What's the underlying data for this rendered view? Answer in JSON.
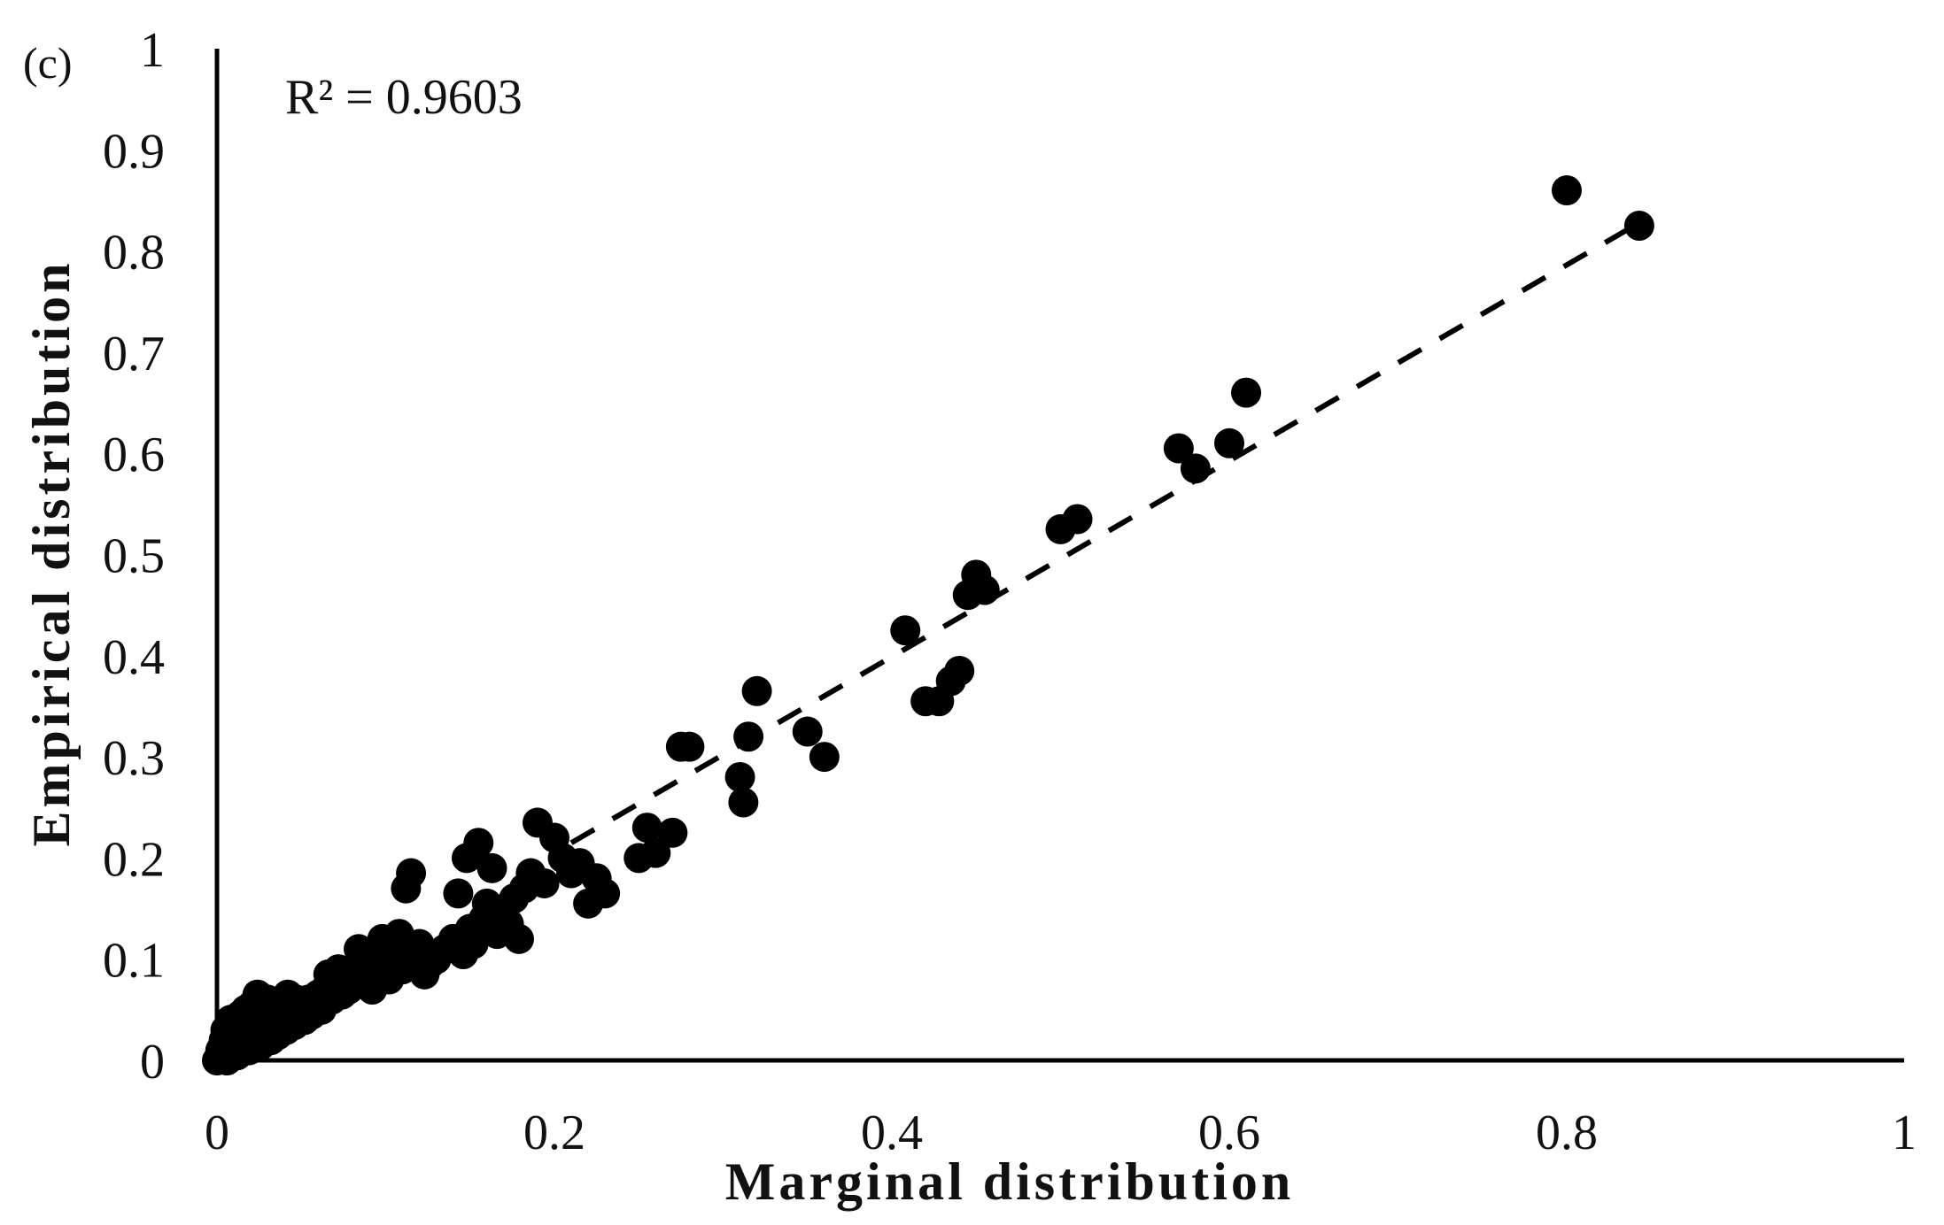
{
  "chart_data": {
    "type": "scatter",
    "panel_label": "(c)",
    "annotation": "R² = 0.9603",
    "xlabel": "Marginal distribution",
    "ylabel": "Empirical distribution",
    "xlim": [
      0,
      1
    ],
    "ylim": [
      0,
      1
    ],
    "xticks": [
      "0",
      "0.2",
      "0.4",
      "0.6",
      "0.8",
      "1"
    ],
    "yticks": [
      "0",
      "0.1",
      "0.2",
      "0.3",
      "0.4",
      "0.5",
      "0.6",
      "0.7",
      "0.8",
      "0.9",
      "1"
    ],
    "grid": false,
    "legend": "none",
    "marker_color": "#000000",
    "trendline": {
      "style": "dashed",
      "x": [
        0.21,
        0.84
      ],
      "y": [
        0.215,
        0.825
      ]
    },
    "points": [
      [
        0.0,
        0.0
      ],
      [
        0.002,
        0.01
      ],
      [
        0.003,
        0.005
      ],
      [
        0.004,
        0.02
      ],
      [
        0.005,
        0.03
      ],
      [
        0.006,
        0.0
      ],
      [
        0.007,
        0.015
      ],
      [
        0.008,
        0.04
      ],
      [
        0.009,
        0.025
      ],
      [
        0.01,
        0.01
      ],
      [
        0.011,
        0.035
      ],
      [
        0.012,
        0.005
      ],
      [
        0.013,
        0.02
      ],
      [
        0.014,
        0.045
      ],
      [
        0.015,
        0.03
      ],
      [
        0.016,
        0.015
      ],
      [
        0.017,
        0.05
      ],
      [
        0.018,
        0.025
      ],
      [
        0.019,
        0.01
      ],
      [
        0.02,
        0.04
      ],
      [
        0.021,
        0.055
      ],
      [
        0.022,
        0.03
      ],
      [
        0.023,
        0.02
      ],
      [
        0.024,
        0.065
      ],
      [
        0.025,
        0.04
      ],
      [
        0.026,
        0.015
      ],
      [
        0.027,
        0.05
      ],
      [
        0.028,
        0.035
      ],
      [
        0.029,
        0.025
      ],
      [
        0.03,
        0.06
      ],
      [
        0.031,
        0.045
      ],
      [
        0.032,
        0.02
      ],
      [
        0.033,
        0.03
      ],
      [
        0.034,
        0.055
      ],
      [
        0.035,
        0.04
      ],
      [
        0.036,
        0.025
      ],
      [
        0.037,
        0.05
      ],
      [
        0.038,
        0.035
      ],
      [
        0.039,
        0.06
      ],
      [
        0.04,
        0.045
      ],
      [
        0.041,
        0.03
      ],
      [
        0.042,
        0.065
      ],
      [
        0.043,
        0.05
      ],
      [
        0.044,
        0.04
      ],
      [
        0.045,
        0.055
      ],
      [
        0.046,
        0.035
      ],
      [
        0.047,
        0.06
      ],
      [
        0.048,
        0.045
      ],
      [
        0.05,
        0.05
      ],
      [
        0.052,
        0.04
      ],
      [
        0.054,
        0.06
      ],
      [
        0.056,
        0.045
      ],
      [
        0.058,
        0.055
      ],
      [
        0.06,
        0.065
      ],
      [
        0.062,
        0.05
      ],
      [
        0.064,
        0.07
      ],
      [
        0.066,
        0.085
      ],
      [
        0.068,
        0.06
      ],
      [
        0.07,
        0.075
      ],
      [
        0.072,
        0.09
      ],
      [
        0.074,
        0.065
      ],
      [
        0.076,
        0.08
      ],
      [
        0.078,
        0.07
      ],
      [
        0.08,
        0.085
      ],
      [
        0.082,
        0.075
      ],
      [
        0.084,
        0.11
      ],
      [
        0.086,
        0.08
      ],
      [
        0.088,
        0.095
      ],
      [
        0.09,
        0.085
      ],
      [
        0.092,
        0.07
      ],
      [
        0.094,
        0.1
      ],
      [
        0.096,
        0.09
      ],
      [
        0.098,
        0.12
      ],
      [
        0.1,
        0.095
      ],
      [
        0.102,
        0.08
      ],
      [
        0.104,
        0.11
      ],
      [
        0.106,
        0.1
      ],
      [
        0.108,
        0.125
      ],
      [
        0.11,
        0.09
      ],
      [
        0.112,
        0.17
      ],
      [
        0.115,
        0.185
      ],
      [
        0.118,
        0.1
      ],
      [
        0.12,
        0.115
      ],
      [
        0.123,
        0.085
      ],
      [
        0.126,
        0.095
      ],
      [
        0.13,
        0.1
      ],
      [
        0.135,
        0.11
      ],
      [
        0.14,
        0.12
      ],
      [
        0.143,
        0.165
      ],
      [
        0.146,
        0.105
      ],
      [
        0.148,
        0.2
      ],
      [
        0.15,
        0.13
      ],
      [
        0.152,
        0.115
      ],
      [
        0.155,
        0.215
      ],
      [
        0.158,
        0.14
      ],
      [
        0.16,
        0.155
      ],
      [
        0.163,
        0.19
      ],
      [
        0.166,
        0.125
      ],
      [
        0.17,
        0.15
      ],
      [
        0.173,
        0.135
      ],
      [
        0.176,
        0.16
      ],
      [
        0.179,
        0.12
      ],
      [
        0.182,
        0.17
      ],
      [
        0.186,
        0.185
      ],
      [
        0.19,
        0.235
      ],
      [
        0.194,
        0.175
      ],
      [
        0.2,
        0.22
      ],
      [
        0.205,
        0.2
      ],
      [
        0.21,
        0.185
      ],
      [
        0.215,
        0.195
      ],
      [
        0.22,
        0.155
      ],
      [
        0.225,
        0.18
      ],
      [
        0.23,
        0.165
      ],
      [
        0.25,
        0.2
      ],
      [
        0.255,
        0.23
      ],
      [
        0.26,
        0.205
      ],
      [
        0.27,
        0.225
      ],
      [
        0.275,
        0.31
      ],
      [
        0.28,
        0.31
      ],
      [
        0.31,
        0.28
      ],
      [
        0.312,
        0.255
      ],
      [
        0.315,
        0.32
      ],
      [
        0.32,
        0.365
      ],
      [
        0.35,
        0.325
      ],
      [
        0.36,
        0.3
      ],
      [
        0.408,
        0.425
      ],
      [
        0.42,
        0.355
      ],
      [
        0.428,
        0.355
      ],
      [
        0.435,
        0.375
      ],
      [
        0.44,
        0.385
      ],
      [
        0.445,
        0.46
      ],
      [
        0.45,
        0.48
      ],
      [
        0.455,
        0.465
      ],
      [
        0.5,
        0.525
      ],
      [
        0.51,
        0.535
      ],
      [
        0.57,
        0.605
      ],
      [
        0.58,
        0.585
      ],
      [
        0.6,
        0.61
      ],
      [
        0.61,
        0.66
      ],
      [
        0.8,
        0.86
      ],
      [
        0.843,
        0.825
      ]
    ]
  }
}
